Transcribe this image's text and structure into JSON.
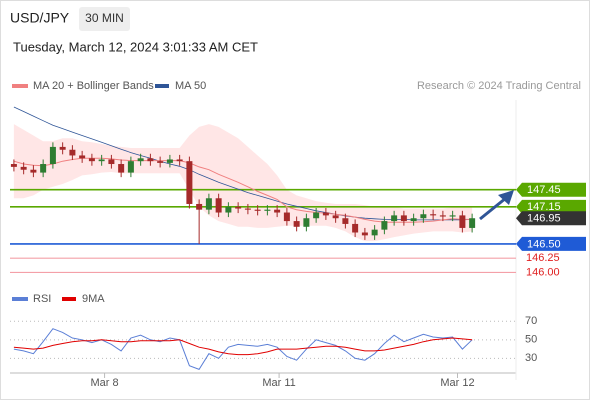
{
  "chart_data": {
    "type": "candlestick",
    "symbol": "USD/JPY",
    "interval": "30 MIN",
    "subtitle": "Tuesday, March 12, 2024 3:01:33 AM CET",
    "credit": "Research © 2024 Trading Central",
    "legend": [
      "MA 20 + Bollinger Bands",
      "MA 50"
    ],
    "legend_colors": [
      "#f08080",
      "#2f5597"
    ],
    "ylim": [
      145.78,
      149.46
    ],
    "xlim": [
      -0.4,
      51.5
    ],
    "xticks": [
      {
        "value": 9.3,
        "label": "Mar 8"
      },
      {
        "value": 27.2,
        "label": "Mar 11"
      },
      {
        "value": 45.5,
        "label": "Mar 12"
      }
    ],
    "up_color": "#2e7d32",
    "down_color": "#a52a2a",
    "open": [
      147.9,
      147.85,
      147.8,
      147.75,
      147.9,
      148.2,
      148.15,
      148.05,
      148.0,
      147.95,
      147.98,
      147.9,
      147.75,
      147.95,
      148.0,
      147.95,
      147.92,
      147.98,
      147.95,
      147.2,
      147.1,
      147.3,
      147.05,
      147.15,
      147.12,
      147.1,
      147.08,
      147.1,
      147.05,
      146.9,
      146.8,
      146.95,
      147.05,
      147.0,
      146.95,
      146.85,
      146.7,
      146.65,
      146.75,
      146.9,
      147.0,
      146.9,
      146.95,
      147.02,
      147.0,
      146.98,
      147.0,
      146.78
    ],
    "high": [
      147.98,
      147.93,
      147.88,
      147.98,
      148.28,
      148.28,
      148.23,
      148.13,
      148.08,
      148.06,
      148.06,
      147.98,
      148.03,
      148.08,
      148.08,
      148.03,
      148.06,
      148.06,
      148.03,
      147.28,
      147.38,
      147.38,
      147.23,
      147.23,
      147.2,
      147.18,
      147.18,
      147.18,
      147.13,
      146.98,
      147.03,
      147.13,
      147.13,
      147.08,
      147.03,
      146.93,
      146.78,
      146.83,
      146.98,
      147.08,
      147.08,
      147.03,
      147.1,
      147.1,
      147.08,
      147.08,
      147.08,
      147.03
    ],
    "low": [
      147.77,
      147.72,
      147.67,
      147.67,
      147.82,
      148.07,
      147.97,
      147.92,
      147.87,
      147.87,
      147.82,
      147.67,
      147.67,
      147.87,
      147.87,
      147.84,
      147.84,
      147.87,
      147.12,
      146.5,
      147.02,
      146.97,
      146.97,
      147.04,
      147.02,
      147.0,
      147.0,
      146.97,
      146.82,
      146.72,
      146.72,
      146.87,
      146.92,
      146.87,
      146.77,
      146.62,
      146.57,
      146.57,
      146.67,
      146.82,
      146.82,
      146.82,
      146.87,
      146.92,
      146.9,
      146.9,
      146.7,
      146.7
    ],
    "close": [
      147.85,
      147.8,
      147.75,
      147.9,
      148.2,
      148.15,
      148.05,
      148.0,
      147.95,
      147.98,
      147.9,
      147.75,
      147.95,
      148.0,
      147.95,
      147.92,
      147.98,
      147.95,
      147.2,
      147.1,
      147.3,
      147.05,
      147.15,
      147.12,
      147.1,
      147.08,
      147.1,
      147.05,
      146.9,
      146.8,
      146.95,
      147.05,
      147.0,
      146.95,
      146.85,
      146.7,
      146.65,
      146.75,
      146.9,
      147.0,
      146.9,
      146.95,
      147.02,
      147.0,
      146.98,
      147.0,
      146.78,
      146.95
    ],
    "ma20": [
      147.95,
      147.9,
      147.88,
      147.87,
      147.9,
      147.95,
      147.98,
      148.0,
      148.0,
      148.0,
      147.99,
      147.97,
      147.96,
      147.96,
      147.96,
      147.96,
      147.96,
      147.96,
      147.92,
      147.85,
      147.8,
      147.72,
      147.65,
      147.58,
      147.5,
      147.42,
      147.35,
      147.28,
      147.15,
      147.1,
      147.07,
      147.05,
      147.04,
      147.02,
      147.0,
      146.97,
      146.93,
      146.9,
      146.88,
      146.88,
      146.88,
      146.88,
      146.89,
      146.9,
      146.92,
      146.94,
      146.93,
      146.93
    ],
    "bb_upper": [
      148.6,
      148.5,
      148.4,
      148.3,
      148.3,
      148.35,
      148.35,
      148.3,
      148.28,
      148.25,
      148.22,
      148.2,
      148.18,
      148.18,
      148.18,
      148.18,
      148.18,
      148.18,
      148.4,
      148.55,
      148.6,
      148.55,
      148.45,
      148.35,
      148.2,
      148.05,
      147.9,
      147.7,
      147.45,
      147.35,
      147.3,
      147.25,
      147.22,
      147.2,
      147.2,
      147.2,
      147.18,
      147.15,
      147.15,
      147.15,
      147.12,
      147.12,
      147.12,
      147.12,
      147.12,
      147.14,
      147.14,
      147.14
    ],
    "bb_lower": [
      147.3,
      147.3,
      147.35,
      147.45,
      147.5,
      147.55,
      147.62,
      147.7,
      147.72,
      147.75,
      147.76,
      147.74,
      147.74,
      147.74,
      147.74,
      147.74,
      147.74,
      147.74,
      147.45,
      147.15,
      147.0,
      146.9,
      146.85,
      146.8,
      146.8,
      146.78,
      146.78,
      146.8,
      146.82,
      146.82,
      146.82,
      146.82,
      146.82,
      146.78,
      146.72,
      146.62,
      146.55,
      146.55,
      146.58,
      146.62,
      146.65,
      146.68,
      146.7,
      146.72,
      146.72,
      146.72,
      146.7,
      146.72
    ],
    "ma50": [
      148.9,
      148.82,
      148.74,
      148.66,
      148.58,
      148.52,
      148.46,
      148.4,
      148.34,
      148.28,
      148.22,
      148.16,
      148.1,
      148.05,
      148.0,
      147.95,
      147.9,
      147.86,
      147.8,
      147.72,
      147.65,
      147.58,
      147.52,
      147.46,
      147.4,
      147.35,
      147.3,
      147.25,
      147.2,
      147.16,
      147.12,
      147.08,
      147.05,
      147.02,
      146.99,
      146.97,
      146.95,
      146.94,
      146.93,
      146.93,
      146.93,
      146.92,
      146.92,
      146.92,
      146.92,
      146.92,
      146.92,
      146.93
    ],
    "levels": [
      {
        "value": 147.45,
        "label": "147.45",
        "color": "#5aa800",
        "style": "box"
      },
      {
        "value": 147.15,
        "label": "147.15",
        "color": "#5aa800",
        "style": "box"
      },
      {
        "value": 146.95,
        "label": "146.95",
        "color": "#333333",
        "style": "box"
      },
      {
        "value": 146.5,
        "label": "146.50",
        "color": "#1f5bd6",
        "style": "box"
      },
      {
        "value": 146.25,
        "label": "146.25",
        "color": "#f4a0a8",
        "style": "text"
      },
      {
        "value": 146.0,
        "label": "146.00",
        "color": "#f4a0a8",
        "style": "text"
      }
    ],
    "rsi": {
      "legend": [
        "RSI",
        "9MA"
      ],
      "colors": [
        "#5b7fd6",
        "#e00000"
      ],
      "ylim": [
        12,
        93
      ],
      "yticks": [
        70,
        50,
        30
      ],
      "rsi": [
        40,
        38,
        35,
        48,
        62,
        58,
        52,
        50,
        47,
        50,
        45,
        38,
        52,
        55,
        50,
        48,
        52,
        50,
        22,
        18,
        35,
        30,
        42,
        45,
        44,
        43,
        45,
        42,
        32,
        28,
        40,
        50,
        47,
        44,
        38,
        30,
        28,
        35,
        46,
        55,
        48,
        52,
        56,
        53,
        52,
        53,
        40,
        50
      ],
      "ma9": [
        42,
        41,
        40,
        41,
        44,
        46,
        48,
        49,
        49,
        50,
        49,
        48,
        48,
        49,
        49,
        49,
        49,
        50,
        46,
        42,
        40,
        37,
        35,
        34,
        34,
        35,
        37,
        40,
        40,
        40,
        41,
        42,
        43,
        43,
        42,
        40,
        38,
        38,
        39,
        41,
        43,
        45,
        48,
        50,
        51,
        52,
        51,
        50
      ]
    }
  }
}
